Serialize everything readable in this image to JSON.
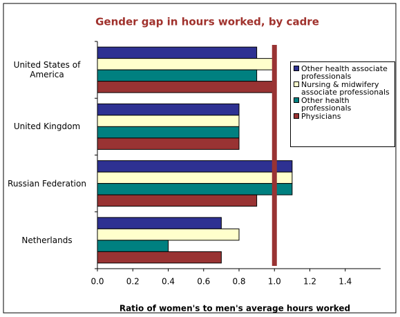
{
  "chart_data": {
    "type": "hbar",
    "title": "Gender gap in hours worked, by cadre",
    "x_label": "Ratio of women's to men's average hours worked",
    "categories": [
      "United States of America",
      "United Kingdom",
      "Russian Federation",
      "Netherlands"
    ],
    "series": [
      {
        "name": "Other health associate professionals",
        "color": "#2e3192",
        "values": [
          0.9,
          0.8,
          1.1,
          0.7
        ]
      },
      {
        "name": "Nursing & midwifery associate professionals",
        "color": "#ffffcc",
        "values": [
          1.0,
          0.8,
          1.1,
          0.8
        ]
      },
      {
        "name": "Other health professionals",
        "color": "#008080",
        "values": [
          0.9,
          0.8,
          1.1,
          0.4
        ]
      },
      {
        "name": "Physicians",
        "color": "#993333",
        "values": [
          1.0,
          0.8,
          0.9,
          0.7
        ]
      }
    ],
    "xlim": [
      0,
      1.6
    ],
    "xticks": [
      {
        "value": 0,
        "label": "0.0"
      },
      {
        "value": 0.2,
        "label": "0.2"
      },
      {
        "value": 0.4,
        "label": "0.4"
      },
      {
        "value": 0.6,
        "label": "0.6"
      },
      {
        "value": 0.8,
        "label": "0.8"
      },
      {
        "value": 1,
        "label": "1.0"
      },
      {
        "value": 1.2,
        "label": "1.2"
      },
      {
        "value": 1.4,
        "label": "1.4"
      }
    ],
    "reference_line": {
      "value": 1,
      "color": "#993333"
    },
    "legend": "right"
  }
}
